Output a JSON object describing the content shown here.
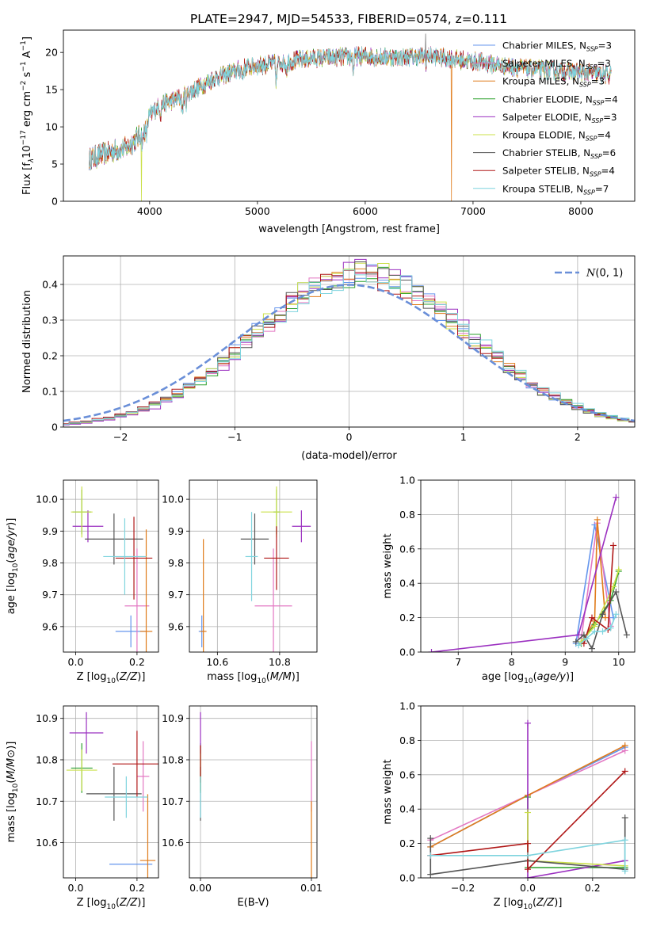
{
  "figure": {
    "suptitle": "PLATE=2947, MJD=54533, FIBERID=0574, z=0.111"
  },
  "models": [
    {
      "name": "Chabrier MILES, N$_{SSP}$=3",
      "label": "Chabrier MILES, N",
      "sub": "SSP",
      "tail": "=3",
      "color": "#6495ed"
    },
    {
      "name": "Salpeter MILES, N$_{SSP}$=3",
      "label": "Salpeter MILES, N",
      "sub": "SSP",
      "tail": "=3",
      "color": "#e377c2"
    },
    {
      "name": "Kroupa MILES, N$_{SSP}$=3",
      "label": "Kroupa MILES, N",
      "sub": "SSP",
      "tail": "=3",
      "color": "#e07b1a"
    },
    {
      "name": "Chabrier ELODIE, N$_{SSP}$=4",
      "label": "Chabrier ELODIE, N",
      "sub": "SSP",
      "tail": "=4",
      "color": "#2ca02c"
    },
    {
      "name": "Salpeter ELODIE, N$_{SSP}$=3",
      "label": "Salpeter ELODIE, N",
      "sub": "SSP",
      "tail": "=3",
      "color": "#9b30c0"
    },
    {
      "name": "Kroupa ELODIE, N$_{SSP}$=4",
      "label": "Kroupa ELODIE, N",
      "sub": "SSP",
      "tail": "=4",
      "color": "#cbe04a"
    },
    {
      "name": "Chabrier STELIB, N$_{SSP}$=6",
      "label": "Chabrier STELIB, N",
      "sub": "SSP",
      "tail": "=6",
      "color": "#555555"
    },
    {
      "name": "Salpeter STELIB, N$_{SSP}$=4",
      "label": "Salpeter STELIB, N",
      "sub": "SSP",
      "tail": "=4",
      "color": "#b01818"
    },
    {
      "name": "Kroupa STELIB, N$_{SSP}$=7",
      "label": "Kroupa STELIB, N",
      "sub": "SSP",
      "tail": "=7",
      "color": "#7fd4de"
    }
  ],
  "chart_data": [
    {
      "id": "spectrum",
      "type": "line",
      "xlabel": "wavelength [Angstrom, rest frame]",
      "ylabel_parts": [
        "Flux [f",
        "λ",
        "10",
        "−17",
        " erg cm",
        "−2",
        " s",
        "−1",
        " A",
        "−1",
        "]"
      ],
      "xlim": [
        3200,
        8500
      ],
      "ylim": [
        0,
        23
      ],
      "xticks": [
        4000,
        5000,
        6000,
        7000,
        8000
      ],
      "yticks": [
        0,
        5,
        10,
        15,
        20
      ],
      "grid": false,
      "legend": "right",
      "data_coverage": [
        3440,
        8280
      ],
      "continuum_knots": [
        [
          3440,
          5.6
        ],
        [
          3600,
          6.5
        ],
        [
          3800,
          7.3
        ],
        [
          3950,
          9.5
        ],
        [
          4000,
          11.5
        ],
        [
          4100,
          13.0
        ],
        [
          4300,
          14.0
        ],
        [
          4600,
          16.5
        ],
        [
          4900,
          18.0
        ],
        [
          5200,
          18.6
        ],
        [
          5500,
          19.2
        ],
        [
          5800,
          19.4
        ],
        [
          6000,
          19.5
        ],
        [
          6300,
          19.3
        ],
        [
          6600,
          19.5
        ],
        [
          7000,
          18.8
        ],
        [
          7500,
          17.8
        ],
        [
          8000,
          17.3
        ],
        [
          8280,
          17.0
        ]
      ],
      "absorption_features": [
        [
          3934,
          1.8
        ],
        [
          3969,
          1.6
        ],
        [
          4102,
          1.2
        ],
        [
          4304,
          2.2
        ],
        [
          4340,
          1.0
        ],
        [
          4861,
          1.0
        ],
        [
          5175,
          2.5
        ],
        [
          5270,
          1.0
        ],
        [
          5890,
          2.0
        ],
        [
          6563,
          0.8
        ]
      ],
      "dropouts": [
        {
          "x": 3530,
          "model": 7
        },
        {
          "x": 3925,
          "model": 5
        },
        {
          "x": 6800,
          "model": 2
        },
        {
          "x": 7090,
          "model": 6
        },
        {
          "x": 7410,
          "model": 7
        }
      ],
      "spikes": [
        {
          "x": 6560,
          "y": 22.5
        }
      ]
    },
    {
      "id": "residuals",
      "type": "histogram",
      "xlabel": "(data-model)/error",
      "ylabel": "Normed distribution",
      "xlim": [
        -2.5,
        2.5
      ],
      "ylim": [
        0,
        0.48
      ],
      "xticks": [
        -2,
        -1,
        0,
        1,
        2
      ],
      "yticks": [
        0,
        0.1,
        0.2,
        0.3,
        0.4
      ],
      "grid": true,
      "bin_width": 0.1,
      "reference_curve": {
        "label": "N(0,1)",
        "mean": 0,
        "sigma": 1,
        "color": "#6a8fd8"
      },
      "legend": "top-right"
    },
    {
      "id": "age_vs_Z",
      "type": "errorbar",
      "xlabel": "Z [log10(Z/Z⊙)]",
      "ylabel": "age  [log10(age/yr)]",
      "xlim": [
        -0.04,
        0.27
      ],
      "ylim": [
        9.52,
        10.06
      ],
      "xticks": [
        0.0,
        0.2
      ],
      "yticks": [
        9.6,
        9.7,
        9.8,
        9.9,
        10.0
      ],
      "grid": true,
      "points": [
        {
          "model": 0,
          "x": 0.18,
          "xerr": 0.05,
          "y": 9.585,
          "yerr": 0.05
        },
        {
          "model": 1,
          "x": 0.2,
          "xerr": 0.04,
          "y": 9.665,
          "yerr": 0.18
        },
        {
          "model": 2,
          "x": 0.23,
          "xerr": 0.02,
          "y": 9.585,
          "yerr": 0.32
        },
        {
          "model": 3,
          "x": 0.02,
          "xerr": 0.03,
          "y": 9.96,
          "yerr": 0.07
        },
        {
          "model": 4,
          "x": 0.04,
          "xerr": 0.05,
          "y": 9.915,
          "yerr": 0.05
        },
        {
          "model": 5,
          "x": 0.02,
          "xerr": 0.035,
          "y": 9.96,
          "yerr": 0.08
        },
        {
          "model": 6,
          "x": 0.125,
          "xerr": 0.095,
          "y": 9.875,
          "yerr": 0.08
        },
        {
          "model": 7,
          "x": 0.19,
          "xerr": 0.06,
          "y": 9.815,
          "yerr": 0.13
        },
        {
          "model": 8,
          "x": 0.16,
          "xerr": 0.07,
          "y": 9.82,
          "yerr": 0.12
        }
      ]
    },
    {
      "id": "age_vs_mass",
      "type": "errorbar",
      "xlabel": "mass [log10(M/M⊙)]",
      "ylabel": "",
      "xlim": [
        10.51,
        10.92
      ],
      "ylim": [
        9.52,
        10.06
      ],
      "xticks": [
        10.6,
        10.8
      ],
      "yticks": [
        9.6,
        9.7,
        9.8,
        9.9,
        10.0
      ],
      "grid": true,
      "points": [
        {
          "model": 0,
          "x": 10.55,
          "xerr": 0.01,
          "y": 9.585,
          "yerr": 0.05
        },
        {
          "model": 1,
          "x": 10.78,
          "xerr": 0.06,
          "y": 9.665,
          "yerr": 0.18
        },
        {
          "model": 2,
          "x": 10.555,
          "xerr": 0.01,
          "y": 9.585,
          "yerr": 0.29
        },
        {
          "model": 3,
          "x": 10.79,
          "xerr": 0.01,
          "y": 9.96,
          "yerr": 0.07
        },
        {
          "model": 4,
          "x": 10.87,
          "xerr": 0.03,
          "y": 9.915,
          "yerr": 0.05
        },
        {
          "model": 5,
          "x": 10.79,
          "xerr": 0.05,
          "y": 9.96,
          "yerr": 0.08
        },
        {
          "model": 6,
          "x": 10.72,
          "xerr": 0.045,
          "y": 9.875,
          "yerr": 0.08
        },
        {
          "model": 7,
          "x": 10.79,
          "xerr": 0.04,
          "y": 9.815,
          "yerr": 0.1
        },
        {
          "model": 8,
          "x": 10.71,
          "xerr": 0.02,
          "y": 9.82,
          "yerr": 0.14
        }
      ]
    },
    {
      "id": "weight_vs_age",
      "type": "line",
      "xlabel": "age  [log10(age/yr)]",
      "ylabel": "mass weight",
      "xlim": [
        6.3,
        10.3
      ],
      "ylim": [
        0,
        1.0
      ],
      "xticks": [
        7,
        8,
        9,
        10
      ],
      "yticks": [
        0.0,
        0.2,
        0.4,
        0.6,
        0.8,
        1.0
      ],
      "grid": true,
      "series": [
        {
          "model": 0,
          "x": [
            9.2,
            9.55,
            9.9
          ],
          "y": [
            0.05,
            0.74,
            0.2
          ]
        },
        {
          "model": 1,
          "x": [
            9.3,
            9.6,
            9.85
          ],
          "y": [
            0.08,
            0.75,
            0.15
          ]
        },
        {
          "model": 2,
          "x": [
            9.3,
            9.55,
            9.6,
            9.75
          ],
          "y": [
            0.05,
            0.18,
            0.77,
            0.2
          ]
        },
        {
          "model": 3,
          "x": [
            9.3,
            9.55,
            9.85,
            10.0
          ],
          "y": [
            0.05,
            0.16,
            0.3,
            0.47
          ]
        },
        {
          "model": 4,
          "x": [
            6.5,
            9.25,
            9.95
          ],
          "y": [
            0.0,
            0.1,
            0.9
          ]
        },
        {
          "model": 5,
          "x": [
            9.3,
            9.55,
            9.9,
            10.0
          ],
          "y": [
            0.06,
            0.15,
            0.38,
            0.48
          ]
        },
        {
          "model": 6,
          "x": [
            9.2,
            9.35,
            9.5,
            9.7,
            9.95,
            10.15
          ],
          "y": [
            0.06,
            0.1,
            0.02,
            0.22,
            0.35,
            0.1
          ]
        },
        {
          "model": 7,
          "x": [
            9.35,
            9.5,
            9.8,
            9.9
          ],
          "y": [
            0.05,
            0.2,
            0.13,
            0.62
          ]
        },
        {
          "model": 8,
          "x": [
            9.25,
            9.4,
            9.55,
            9.7,
            9.85,
            9.95
          ],
          "y": [
            0.04,
            0.08,
            0.12,
            0.12,
            0.14,
            0.22
          ]
        }
      ]
    },
    {
      "id": "mass_vs_Z",
      "type": "errorbar",
      "xlabel": "Z [log10(Z/Z⊙)]",
      "ylabel": "mass [log10(M/M⊙)]",
      "xlim": [
        -0.04,
        0.27
      ],
      "ylim": [
        10.515,
        10.93
      ],
      "xticks": [
        0.0,
        0.2
      ],
      "yticks": [
        10.6,
        10.7,
        10.8,
        10.9
      ],
      "grid": true,
      "points": [
        {
          "model": 0,
          "x": 0.18,
          "xerr": 0.07,
          "y": 10.548,
          "yerr": 0.0
        },
        {
          "model": 1,
          "x": 0.22,
          "xerr": 0.02,
          "y": 10.76,
          "yerr": 0.085
        },
        {
          "model": 2,
          "x": 0.235,
          "xerr": 0.025,
          "y": 10.557,
          "yerr": 0.16
        },
        {
          "model": 3,
          "x": 0.02,
          "xerr": 0.035,
          "y": 10.78,
          "yerr": 0.06
        },
        {
          "model": 4,
          "x": 0.035,
          "xerr": 0.055,
          "y": 10.865,
          "yerr": 0.05
        },
        {
          "model": 5,
          "x": 0.02,
          "xerr": 0.05,
          "y": 10.775,
          "yerr": 0.05
        },
        {
          "model": 6,
          "x": 0.125,
          "xerr": 0.09,
          "y": 10.718,
          "yerr": 0.065
        },
        {
          "model": 7,
          "x": 0.2,
          "xerr": 0.08,
          "y": 10.79,
          "yerr": 0.08
        },
        {
          "model": 8,
          "x": 0.165,
          "xerr": 0.07,
          "y": 10.71,
          "yerr": 0.05
        }
      ]
    },
    {
      "id": "mass_vs_EBV",
      "type": "errorbar",
      "xlabel": "E(B-V)",
      "ylabel": "",
      "xlim": [
        -0.001,
        0.0105
      ],
      "ylim": [
        10.515,
        10.93
      ],
      "xticks": [
        0.0,
        0.01
      ],
      "xticklabels": [
        "0.00",
        "0.01"
      ],
      "yticks": [
        10.6,
        10.7,
        10.8,
        10.9
      ],
      "grid": true,
      "points": [
        {
          "model": 0,
          "x": 0.01,
          "y": 10.548,
          "yerr": 0.0
        },
        {
          "model": 1,
          "x": 0.01,
          "y": 10.76,
          "yerr": 0.085
        },
        {
          "model": 2,
          "x": 0.01,
          "y": 10.6,
          "yerr": 0.1
        },
        {
          "model": 3,
          "x": 0.0,
          "y": 10.78,
          "yerr": 0.06
        },
        {
          "model": 4,
          "x": 0.0,
          "y": 10.865,
          "yerr": 0.05
        },
        {
          "model": 5,
          "x": 0.0,
          "y": 10.775,
          "yerr": 0.05
        },
        {
          "model": 6,
          "x": 0.0,
          "y": 10.718,
          "yerr": 0.065
        },
        {
          "model": 7,
          "x": 0.0,
          "y": 10.79,
          "yerr": 0.045
        },
        {
          "model": 8,
          "x": 0.0,
          "y": 10.71,
          "yerr": 0.05
        }
      ]
    },
    {
      "id": "weight_vs_Z",
      "type": "line",
      "xlabel": "Z [log10(Z/Z⊙)]",
      "ylabel": "mass weight",
      "xlim": [
        -0.33,
        0.33
      ],
      "ylim": [
        0,
        1.0
      ],
      "xticks": [
        -0.2,
        0.0,
        0.2
      ],
      "xticklabels": [
        "−0.2",
        "0.0",
        "0.2"
      ],
      "yticks": [
        0.0,
        0.2,
        0.4,
        0.6,
        0.8,
        1.0
      ],
      "grid": true,
      "series": [
        {
          "model": 0,
          "x": [
            -0.3,
            0.0,
            0.3
          ],
          "y": [
            0.18,
            0.48,
            0.76
          ]
        },
        {
          "model": 1,
          "x": [
            -0.3,
            0.0,
            0.3
          ],
          "y": [
            0.22,
            0.48,
            0.74
          ]
        },
        {
          "model": 2,
          "x": [
            -0.3,
            0.0,
            0.3
          ],
          "y": [
            0.18,
            0.48,
            0.77
          ]
        },
        {
          "model": 3,
          "x": [
            0.0,
            0.0,
            0.3
          ],
          "y": [
            0.47,
            0.06,
            0.06
          ]
        },
        {
          "model": 4,
          "x": [
            0.0,
            0.0,
            0.3
          ],
          "y": [
            0.9,
            0.0,
            0.1
          ]
        },
        {
          "model": 5,
          "x": [
            0.0,
            0.0,
            0.3
          ],
          "y": [
            0.38,
            0.1,
            0.07
          ]
        },
        {
          "model": 6,
          "x": [
            -0.3,
            -0.3,
            0.0,
            0.3,
            0.3
          ],
          "y": [
            0.23,
            0.02,
            0.1,
            0.05,
            0.35
          ]
        },
        {
          "model": 7,
          "x": [
            -0.3,
            0.0,
            0.0,
            0.3
          ],
          "y": [
            0.13,
            0.2,
            0.05,
            0.62
          ]
        },
        {
          "model": 8,
          "x": [
            -0.3,
            0.0,
            0.3,
            0.3
          ],
          "y": [
            0.13,
            0.13,
            0.22,
            0.04
          ]
        }
      ]
    }
  ]
}
